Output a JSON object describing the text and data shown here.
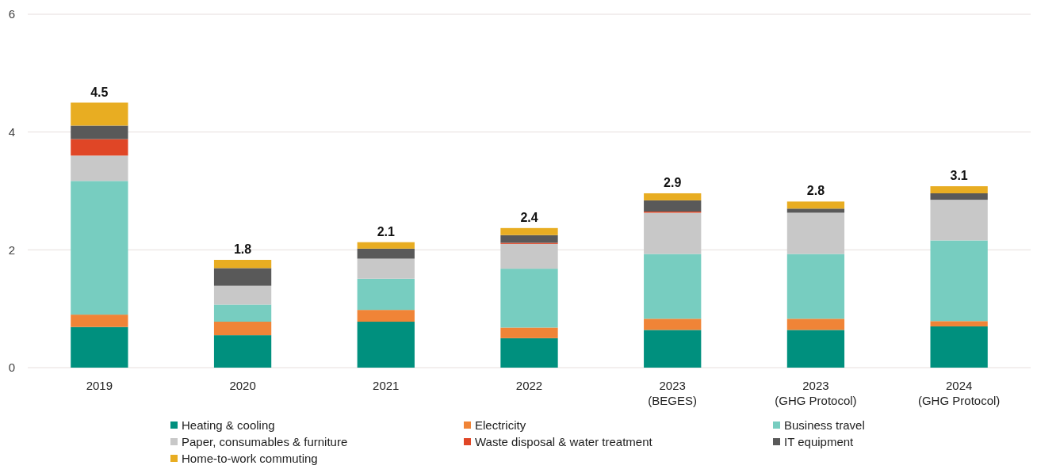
{
  "chart_data": {
    "type": "bar",
    "stacked": true,
    "categories": [
      "2019",
      "2020",
      "2021",
      "2022",
      "2023\n(BEGES)",
      "2023\n(GHG Protocol)",
      "2024\n(GHG Protocol)"
    ],
    "series": [
      {
        "name": "Heating & cooling",
        "color": "#00907e",
        "values": [
          0.69,
          0.55,
          0.78,
          0.5,
          0.64,
          0.64,
          0.7
        ]
      },
      {
        "name": "Electricity",
        "color": "#f08437",
        "values": [
          0.21,
          0.23,
          0.2,
          0.18,
          0.19,
          0.19,
          0.09
        ]
      },
      {
        "name": "Business travel",
        "color": "#77cdc0",
        "values": [
          2.27,
          0.29,
          0.53,
          1.0,
          1.1,
          1.1,
          1.37
        ]
      },
      {
        "name": "Paper, consumables & furniture",
        "color": "#c8c8c8",
        "values": [
          0.43,
          0.32,
          0.34,
          0.42,
          0.7,
          0.7,
          0.69
        ]
      },
      {
        "name": "Waste disposal & water treatment",
        "color": "#e04626",
        "values": [
          0.28,
          0,
          0,
          0.02,
          0.02,
          0,
          0
        ]
      },
      {
        "name": "IT equipment",
        "color": "#595959",
        "values": [
          0.23,
          0.3,
          0.17,
          0.13,
          0.19,
          0.07,
          0.11
        ]
      },
      {
        "name": "Home-to-work commuting",
        "color": "#e8ad22",
        "values": [
          0.39,
          0.14,
          0.11,
          0.12,
          0.12,
          0.12,
          0.12
        ]
      }
    ],
    "totals": [
      "4.5",
      "1.8",
      "2.1",
      "2.4",
      "2.9",
      "2.8",
      "3.1"
    ],
    "ylim": [
      0,
      6
    ],
    "yticks": [
      0,
      2,
      4,
      6
    ],
    "grid": "y",
    "legend": "bottom"
  }
}
